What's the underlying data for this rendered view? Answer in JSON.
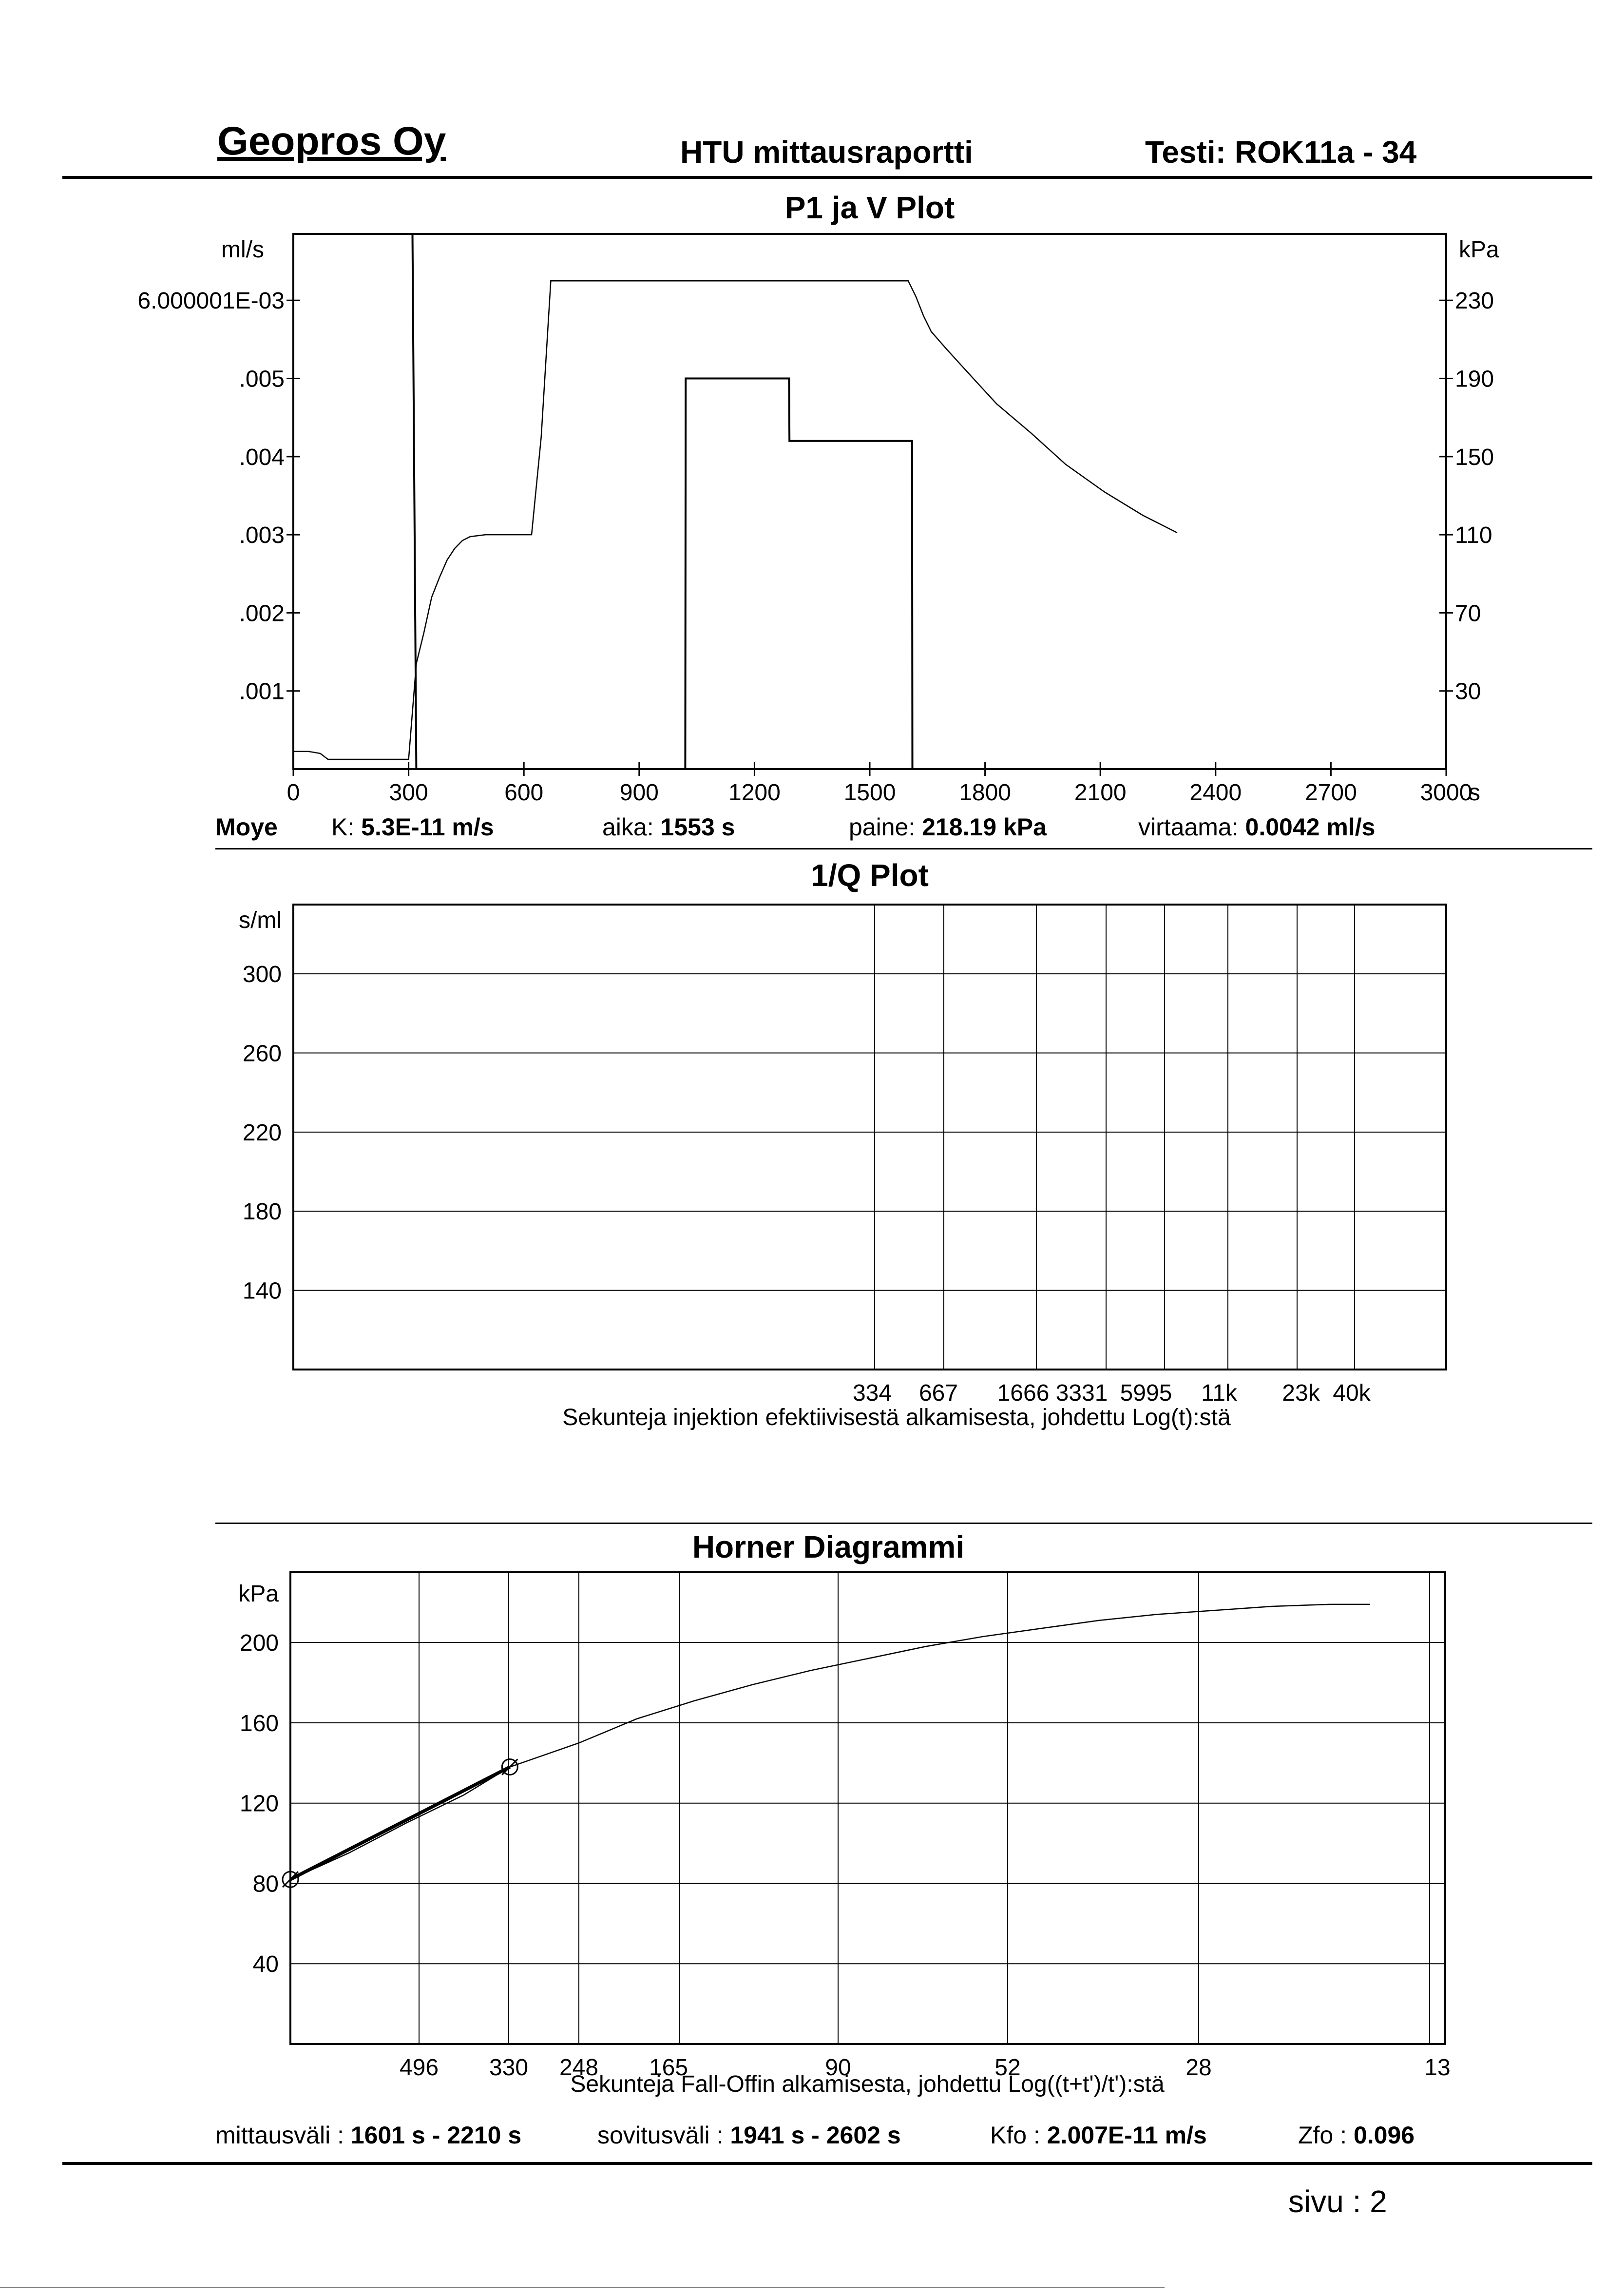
{
  "header": {
    "company": "Geopros Oy",
    "report": "HTU mittausraportti",
    "test": "Testi: ROK11a - 34"
  },
  "info1": {
    "method": "Moye",
    "k_label": "K:",
    "k_value": "5.3E-11 m/s",
    "aika_label": "aika:",
    "aika_value": "1553 s",
    "paine_label": "paine:",
    "paine_value": "218.19 kPa",
    "virtaama_label": "virtaama:",
    "virtaama_value": "0.0042 ml/s"
  },
  "info2": {
    "mittausvali_label": "mittausväli :",
    "mittausvali_value": "1601 s -  2210 s",
    "sovitusvali_label": "sovitusväli :",
    "sovitusvali_value": "1941 s -  2602 s",
    "kfo_label": "Kfo :",
    "kfo_value": "2.007E-11 m/s",
    "zfo_label": "Zfo :",
    "zfo_value": "0.096"
  },
  "footer": {
    "page": "sivu :  2"
  },
  "chart_data": [
    {
      "type": "line",
      "title": "P1 ja V Plot",
      "ylabel_left": "ml/s",
      "ylabel_right": "kPa",
      "xunit": "s",
      "xlim": [
        0,
        3000
      ],
      "y_left_lim": [
        0,
        0.00685
      ],
      "y_right_lim": [
        -10,
        264
      ],
      "x_ticks": [
        0,
        300,
        600,
        900,
        1200,
        1500,
        1800,
        2100,
        2400,
        2700,
        3000
      ],
      "x_tick_labels": [
        "0",
        "300",
        "600",
        "900",
        "1200",
        "1500",
        "1800",
        "2100",
        "2400",
        "2700",
        "3000"
      ],
      "y_left_ticks": [
        0.001,
        0.002,
        0.003,
        0.004,
        0.005,
        0.006000001
      ],
      "y_left_tick_labels": [
        ".001",
        ".002",
        ".003",
        ".004",
        ".005",
        "6.000001E-03"
      ],
      "y_right_ticks": [
        30,
        70,
        110,
        150,
        190,
        230
      ],
      "y_right_tick_labels": [
        "30",
        "70",
        "110",
        "150",
        "190",
        "230"
      ],
      "series": [
        {
          "axis": "left",
          "x": [
            0,
            1,
            310,
            320,
            330,
            340,
            1020,
            1021,
            1290,
            1291,
            1610,
            1611,
            1650
          ],
          "y": [
            0.00685,
            0.00685,
            0.00685,
            0,
            0,
            0,
            0,
            0.005,
            0.005,
            0.0042,
            0.0042,
            0,
            0
          ]
        },
        {
          "axis": "right",
          "x": [
            0,
            40,
            70,
            90,
            300,
            320,
            340,
            360,
            380,
            400,
            420,
            440,
            460,
            500,
            540,
            580,
            620,
            625,
            645,
            670,
            1150,
            1600,
            1620,
            1640,
            1660,
            1700,
            1760,
            1830,
            1920,
            2010,
            2110,
            2210,
            2300
          ],
          "y": [
            -1,
            -1,
            -2,
            -5,
            -5,
            44,
            60,
            78,
            88,
            97,
            103,
            107,
            109,
            110,
            110,
            110,
            110,
            120,
            160,
            240,
            240,
            240,
            232,
            222,
            214,
            205,
            192,
            177,
            162,
            146,
            132,
            120,
            111
          ]
        }
      ]
    },
    {
      "type": "line",
      "title": "1/Q Plot",
      "ylabel": "s/ml",
      "xlabel": "Sekunteja injektion efektiivisestä alkamisesta, johdettu Log(t):stä",
      "ylim": [
        100,
        335
      ],
      "y_ticks": [
        140,
        180,
        220,
        260,
        300
      ],
      "y_tick_labels": [
        "140",
        "180",
        "220",
        "260",
        "300"
      ],
      "x_tick_labels": [
        "334",
        "667",
        "1666",
        "3331",
        "5995",
        "11k",
        "23k",
        "40k"
      ],
      "series": []
    },
    {
      "type": "line",
      "title": "Horner Diagrammi",
      "ylabel": "kPa",
      "xlabel": "Sekunteja Fall-Offin alkamisesta, johdettu Log((t+t')/t'):stä",
      "ylim": [
        0,
        235
      ],
      "y_ticks": [
        40,
        80,
        120,
        160,
        200
      ],
      "y_tick_labels": [
        "40",
        "80",
        "120",
        "160",
        "200"
      ],
      "x_tick_labels": [
        "496",
        "330",
        "248",
        "165",
        "90",
        "52",
        "28",
        "13"
      ],
      "series": [
        {
          "name": "",
          "values_at_x_fraction": [
            [
              0.0,
              82
            ],
            [
              0.05,
              95
            ],
            [
              0.1,
              110
            ],
            [
              0.15,
              124
            ],
            [
              0.19,
              138
            ],
            [
              0.25,
              150
            ],
            [
              0.3,
              162
            ],
            [
              0.35,
              171
            ],
            [
              0.4,
              179
            ],
            [
              0.45,
              186
            ],
            [
              0.5,
              192
            ],
            [
              0.55,
              198
            ],
            [
              0.6,
              203
            ],
            [
              0.65,
              207
            ],
            [
              0.7,
              211
            ],
            [
              0.75,
              214
            ],
            [
              0.8,
              216
            ],
            [
              0.85,
              218
            ],
            [
              0.9,
              219
            ],
            [
              0.935,
              219
            ]
          ]
        },
        {
          "name": "",
          "values_at_x_fraction": [
            [
              0.0,
              82
            ],
            [
              0.19,
              138
            ]
          ]
        }
      ],
      "markers_at_x_fraction": [
        [
          0.0,
          82
        ],
        [
          0.19,
          138
        ]
      ]
    }
  ]
}
